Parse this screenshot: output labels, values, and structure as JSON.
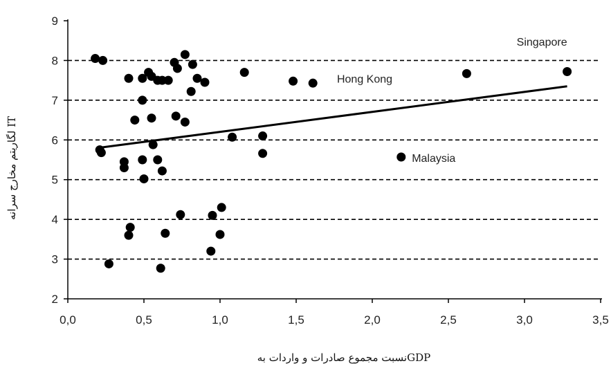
{
  "chart_data": {
    "type": "scatter",
    "xlabel": "نسبت مجموع صادرات و واردات بهGDP",
    "ylabel": "لگاریتم مخارج سرانه IT",
    "xlim": [
      0,
      3.5
    ],
    "ylim": [
      2,
      9
    ],
    "x_ticks": [
      "0,0",
      "0,5",
      "1,0",
      "1,5",
      "2,0",
      "2,5",
      "3,0",
      "3,5"
    ],
    "y_ticks": [
      "2",
      "3",
      "4",
      "5",
      "6",
      "7",
      "8",
      "9"
    ],
    "grid": "horizontal dashed",
    "points": [
      {
        "x": 0.18,
        "y": 8.05
      },
      {
        "x": 0.23,
        "y": 8.0
      },
      {
        "x": 0.21,
        "y": 5.75
      },
      {
        "x": 0.22,
        "y": 5.68
      },
      {
        "x": 0.37,
        "y": 5.45
      },
      {
        "x": 0.37,
        "y": 5.3
      },
      {
        "x": 0.27,
        "y": 2.88
      },
      {
        "x": 0.4,
        "y": 7.55
      },
      {
        "x": 0.44,
        "y": 6.5
      },
      {
        "x": 0.41,
        "y": 3.8
      },
      {
        "x": 0.4,
        "y": 3.6
      },
      {
        "x": 0.49,
        "y": 7.55
      },
      {
        "x": 0.53,
        "y": 7.7
      },
      {
        "x": 0.55,
        "y": 7.6
      },
      {
        "x": 0.49,
        "y": 7.0
      },
      {
        "x": 0.55,
        "y": 6.55
      },
      {
        "x": 0.49,
        "y": 5.5
      },
      {
        "x": 0.5,
        "y": 5.02
      },
      {
        "x": 0.56,
        "y": 5.88
      },
      {
        "x": 0.59,
        "y": 5.5
      },
      {
        "x": 0.62,
        "y": 5.22
      },
      {
        "x": 0.59,
        "y": 7.5
      },
      {
        "x": 0.62,
        "y": 7.5
      },
      {
        "x": 0.66,
        "y": 7.5
      },
      {
        "x": 0.61,
        "y": 2.77
      },
      {
        "x": 0.64,
        "y": 3.65
      },
      {
        "x": 0.7,
        "y": 7.95
      },
      {
        "x": 0.72,
        "y": 7.8
      },
      {
        "x": 0.77,
        "y": 8.15
      },
      {
        "x": 0.82,
        "y": 7.9
      },
      {
        "x": 0.85,
        "y": 7.55
      },
      {
        "x": 0.9,
        "y": 7.45
      },
      {
        "x": 0.81,
        "y": 7.22
      },
      {
        "x": 0.71,
        "y": 6.6
      },
      {
        "x": 0.77,
        "y": 6.45
      },
      {
        "x": 0.74,
        "y": 4.12
      },
      {
        "x": 0.95,
        "y": 4.1
      },
      {
        "x": 1.01,
        "y": 4.3
      },
      {
        "x": 1.0,
        "y": 3.62
      },
      {
        "x": 0.94,
        "y": 3.2
      },
      {
        "x": 1.08,
        "y": 6.07
      },
      {
        "x": 1.16,
        "y": 7.7
      },
      {
        "x": 1.28,
        "y": 6.1
      },
      {
        "x": 1.28,
        "y": 5.66
      },
      {
        "x": 1.48,
        "y": 7.48
      },
      {
        "x": 1.61,
        "y": 7.43
      },
      {
        "x": 2.19,
        "y": 5.57
      },
      {
        "x": 2.62,
        "y": 7.67
      },
      {
        "x": 3.28,
        "y": 7.72
      }
    ],
    "trendline": {
      "x": [
        0.2,
        3.28
      ],
      "y": [
        5.8,
        7.35
      ]
    },
    "annotations": [
      {
        "text": "Singapore",
        "x": 3.28,
        "y": 8.48
      },
      {
        "text": "Hong Kong",
        "x": 1.95,
        "y": 7.55
      },
      {
        "text": "Malaysia",
        "x": 2.26,
        "y": 5.55
      }
    ]
  }
}
